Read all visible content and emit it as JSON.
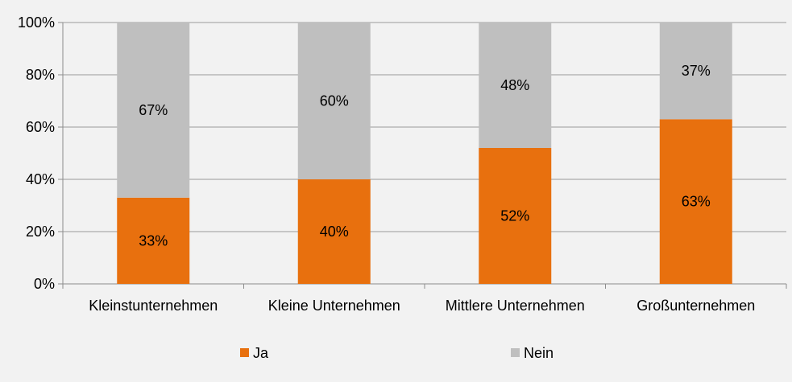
{
  "chart_data": {
    "type": "bar",
    "stacked": true,
    "categories": [
      "Kleinstunternehmen",
      "Kleine Unternehmen",
      "Mittlere Unternehmen",
      "Großunternehmen"
    ],
    "series": [
      {
        "name": "Ja",
        "values": [
          33,
          40,
          52,
          63
        ],
        "labels": [
          "33%",
          "40%",
          "52%",
          "63%"
        ],
        "color": "#e8700e"
      },
      {
        "name": "Nein",
        "values": [
          67,
          60,
          48,
          37
        ],
        "labels": [
          "67%",
          "60%",
          "48%",
          "37%"
        ],
        "color": "#bfbfbf"
      }
    ],
    "ylim": [
      0,
      100
    ],
    "yticks": [
      "0%",
      "20%",
      "40%",
      "60%",
      "80%",
      "100%"
    ],
    "grid": true,
    "legend_position": "bottom"
  }
}
